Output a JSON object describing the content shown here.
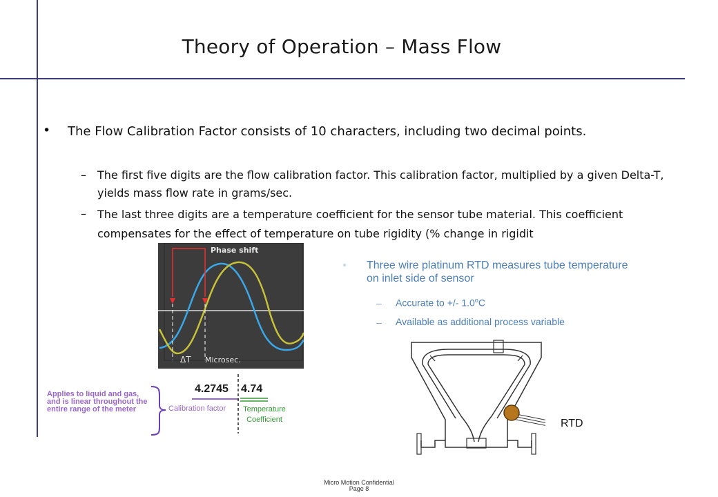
{
  "slide": {
    "title": "Theory of Operation – Mass Flow"
  },
  "bullets": {
    "marker": "•",
    "main": "The Flow Calibration Factor consists of 10 characters, including two decimal points.",
    "sub_marker": "–",
    "sub1": "The first five digits are the flow calibration factor. This calibration factor, multiplied by a given Delta-T, yields mass flow rate in grams/sec.",
    "sub2": "The last three digits are a temperature coefficient for the sensor tube material. This coefficient compensates for the effect of temperature on tube rigidity (% change in rigidit"
  },
  "waveform": {
    "phase_label": "Phase shift",
    "delta_label": "ΔT",
    "units_label": "Microsec.",
    "colors": {
      "background": "#3c3c3c",
      "wave_inlet": "#3aa8e8",
      "wave_outlet": "#c8c23a",
      "marker": "#e83030"
    }
  },
  "rtd_info": {
    "bullet": "Three wire platinum RTD measures tube temperature on inlet side of sensor",
    "dash": "–",
    "item1_prefix": "Accurate to +/- 1.0",
    "item1_sup": "o",
    "item1_suffix": "C",
    "item2": "Available as additional process variable",
    "color": "#4a7ebb"
  },
  "calibration": {
    "applies_note": "Applies to liquid and gas, and is linear throughout the entire range of the meter",
    "factor_value": "4.2745",
    "coefficient_value": "4.74",
    "factor_label": "Calibration factor",
    "coefficient_label": "Temperature Coefficient",
    "colors": {
      "factor": "#9966cc",
      "coefficient": "#339933"
    }
  },
  "sensor_diagram": {
    "rtd_label": "RTD",
    "rtd_color": "#b5761e"
  },
  "footer": {
    "line1": "Micro Motion Confidential",
    "line2": "Page 8"
  }
}
